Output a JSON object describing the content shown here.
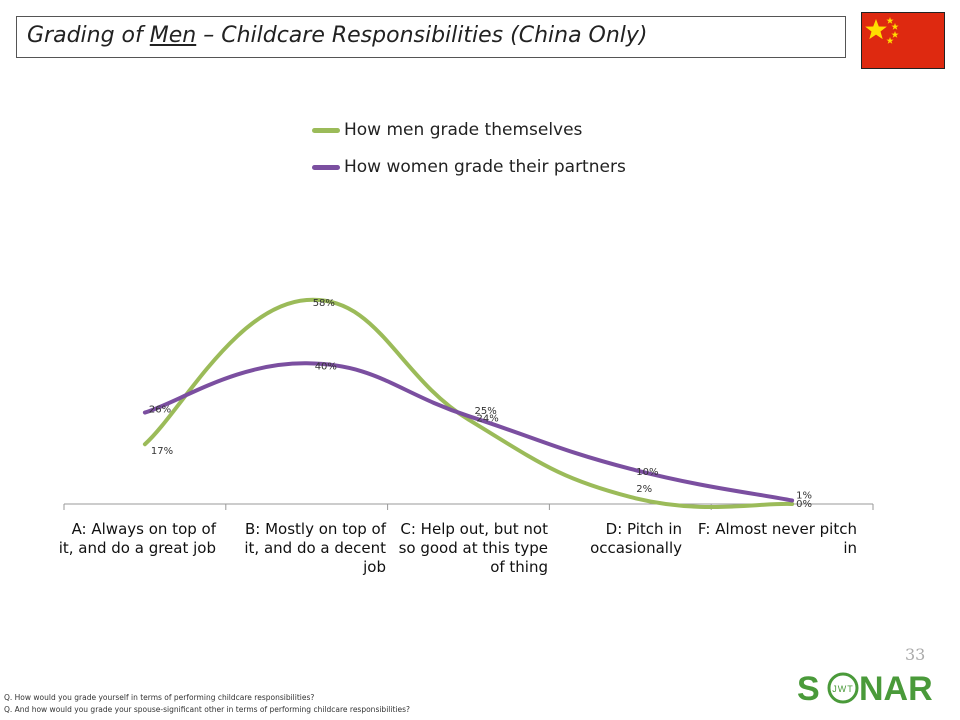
{
  "header": {
    "title_pre": "Grading of ",
    "title_u": "Men",
    "title_post": " – Childcare Responsibilities (China Only)"
  },
  "page_number": "33",
  "logo_text": {
    "s": "S",
    "jwt": "JWT",
    "nar": "NAR"
  },
  "footnotes": [
    "Q. How would you grade yourself in terms of performing childcare responsibilities?",
    "Q. And how would you grade your spouse-significant other in terms of performing childcare responsibilities?"
  ],
  "colors": {
    "men": "#9bbb59",
    "women": "#7b4fa0",
    "flag_red": "#de2910",
    "flag_star": "#ffde00",
    "logo_green": "#4a9a3a"
  },
  "chart_data": {
    "type": "line",
    "categories": [
      "A: Always on top of it, and do a great job",
      "B: Mostly on top of it, and do a decent job",
      "C: Help out, but not so good at this type of thing",
      "D: Pitch in occasionally",
      "F: Almost never pitch in"
    ],
    "series": [
      {
        "name": "How men grade themselves",
        "values": [
          17,
          58,
          24,
          2,
          0
        ],
        "labels": [
          "17%",
          "58%",
          "24%",
          "2%",
          "0%"
        ]
      },
      {
        "name": "How women grade their partners",
        "values": [
          26,
          40,
          25,
          10,
          1
        ],
        "labels": [
          "26%",
          "40%",
          "25%",
          "10%",
          "1%"
        ]
      }
    ],
    "legend": "top",
    "grid": false,
    "ylim": [
      0,
      70
    ],
    "smooth": true
  }
}
